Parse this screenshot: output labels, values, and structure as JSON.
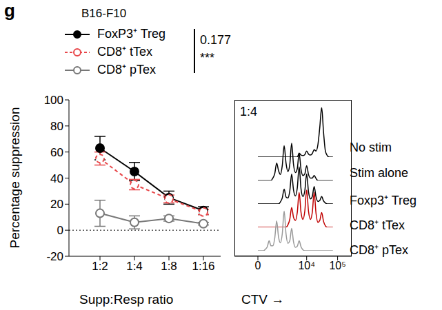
{
  "chart_data": [
    {
      "type": "line",
      "panel_label": "g",
      "title": "B16-F10",
      "x_label": "Supp:Resp ratio",
      "y_label": "Percentage suppression",
      "categories": [
        "1:2",
        "1:4",
        "1:8",
        "1:16"
      ],
      "ylim": [
        -20,
        100
      ],
      "yticks": [
        -20,
        0,
        20,
        40,
        60,
        80,
        100
      ],
      "baseline": 0,
      "series": [
        {
          "name": "FoxP3⁺ Treg",
          "color": "#000000",
          "marker": "filled_circle",
          "line_style": "solid",
          "values": [
            63,
            45,
            25,
            15
          ],
          "errors": [
            9,
            7,
            5,
            3
          ]
        },
        {
          "name": "CD8⁺ tTex",
          "color": "#e8474a",
          "marker": "open_circle",
          "line_style": "dashed",
          "values": [
            55,
            35,
            24,
            14
          ],
          "errors": [
            5,
            4,
            3,
            2
          ]
        },
        {
          "name": "CD8⁺ pTex",
          "color": "#777777",
          "marker": "open_circle",
          "line_style": "solid",
          "values": [
            13,
            6,
            9,
            5
          ],
          "errors": [
            10,
            5,
            2,
            1
          ]
        }
      ],
      "stats": [
        "0.177",
        "***"
      ]
    },
    {
      "type": "line",
      "title": "1:4",
      "x_label": "CTV →",
      "tick_labels": "x",
      "xlim": [
        -25,
        100
      ],
      "xticks": [
        0,
        {
          "value": 52,
          "label": "10⁴"
        },
        {
          "value": 85,
          "label": "10⁵"
        }
      ],
      "ylim": [
        0,
        1
      ],
      "x": [
        0,
        2,
        4,
        6,
        8,
        10,
        12,
        14,
        16,
        18,
        20,
        22,
        24,
        26,
        28,
        30,
        32,
        34,
        36,
        38,
        40,
        42,
        44,
        46,
        48,
        50,
        52,
        54,
        56,
        58,
        60,
        62,
        64,
        66,
        68,
        70,
        72,
        74,
        76,
        78,
        80
      ],
      "series": [
        {
          "name": "No stim",
          "color": "#000000",
          "values": [
            0,
            0,
            0,
            0,
            0,
            0,
            0,
            0,
            0,
            0,
            0,
            0,
            0,
            0,
            0,
            0,
            0,
            0,
            0,
            0,
            0,
            0,
            0.08,
            0.04,
            0.03,
            0.05,
            0.12,
            0.06,
            0.04,
            0.07,
            0.15,
            0.12,
            0.25,
            0.6,
            1.0,
            0.5,
            0.12,
            0.03,
            0,
            0,
            0
          ]
        },
        {
          "name": "Stim alone",
          "color": "#000000",
          "values": [
            0,
            0,
            0,
            0,
            0,
            0,
            0,
            0,
            0.05,
            0.14,
            0.35,
            0.2,
            0.12,
            0.3,
            0.7,
            0.35,
            0.18,
            0.32,
            0.75,
            0.32,
            0.16,
            0.24,
            0.55,
            0.22,
            0.1,
            0.13,
            0.3,
            0.12,
            0.05,
            0.05,
            0.1,
            0.04,
            0,
            0,
            0,
            0,
            0,
            0,
            0,
            0,
            0
          ]
        },
        {
          "name": "Foxp3⁺ Treg",
          "color": "#000000",
          "values": [
            0,
            0,
            0,
            0,
            0,
            0,
            0,
            0,
            0,
            0,
            0,
            0,
            0.04,
            0.12,
            0.3,
            0.14,
            0.12,
            0.26,
            0.6,
            0.28,
            0.16,
            0.32,
            0.75,
            0.3,
            0.15,
            0.26,
            0.6,
            0.24,
            0.1,
            0.15,
            0.35,
            0.14,
            0.05,
            0.07,
            0.15,
            0.06,
            0.02,
            0,
            0,
            0,
            0
          ]
        },
        {
          "name": "CD8⁺ tTex",
          "color": "#c00000",
          "values": [
            0,
            0,
            0,
            0,
            0,
            0,
            0,
            0,
            0,
            0,
            0,
            0,
            0,
            0,
            0,
            0,
            0.05,
            0.16,
            0.4,
            0.2,
            0.14,
            0.3,
            0.7,
            0.3,
            0.16,
            0.32,
            0.75,
            0.32,
            0.16,
            0.3,
            0.7,
            0.28,
            0.1,
            0.14,
            0.3,
            0.12,
            0.03,
            0,
            0,
            0,
            0
          ]
        },
        {
          "name": "CD8⁺ pTex",
          "color": "#999999",
          "values": [
            0,
            0,
            0,
            0,
            0.03,
            0.08,
            0.2,
            0.1,
            0.1,
            0.26,
            0.6,
            0.28,
            0.16,
            0.34,
            0.8,
            0.34,
            0.15,
            0.2,
            0.45,
            0.18,
            0.07,
            0.09,
            0.2,
            0.08,
            0.02,
            0,
            0,
            0,
            0,
            0,
            0,
            0,
            0,
            0,
            0,
            0,
            0,
            0,
            0,
            0,
            0
          ]
        }
      ]
    }
  ]
}
